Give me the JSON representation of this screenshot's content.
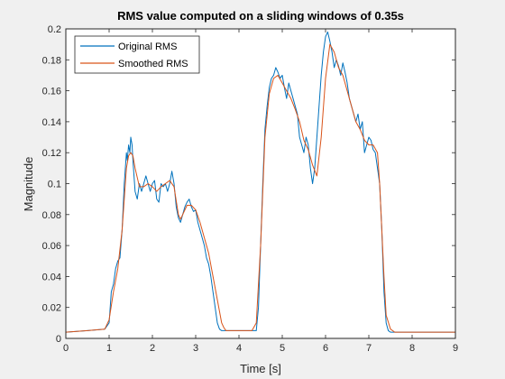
{
  "chart_data": {
    "type": "line",
    "title": "RMS value computed on a sliding windows of 0.35s",
    "xlabel": "Time [s]",
    "ylabel": "Magnitude",
    "xlim": [
      0,
      9
    ],
    "ylim": [
      0,
      0.2
    ],
    "xticks": [
      "0",
      "1",
      "2",
      "3",
      "4",
      "5",
      "6",
      "7",
      "8",
      "9"
    ],
    "yticks": [
      "0",
      "0.02",
      "0.04",
      "0.06",
      "0.08",
      "0.1",
      "0.12",
      "0.14",
      "0.16",
      "0.18",
      "0.2"
    ],
    "grid": false,
    "legend_position": "top-left",
    "series": [
      {
        "name": "Original RMS",
        "color": "#0072BD",
        "x": [
          0,
          0.5,
          0.9,
          1.0,
          1.05,
          1.1,
          1.15,
          1.2,
          1.25,
          1.3,
          1.35,
          1.4,
          1.42,
          1.45,
          1.48,
          1.5,
          1.53,
          1.55,
          1.6,
          1.65,
          1.7,
          1.75,
          1.8,
          1.85,
          1.9,
          1.95,
          2.0,
          2.05,
          2.1,
          2.15,
          2.2,
          2.25,
          2.3,
          2.35,
          2.4,
          2.45,
          2.5,
          2.55,
          2.6,
          2.65,
          2.7,
          2.75,
          2.8,
          2.85,
          2.9,
          2.95,
          3.0,
          3.05,
          3.1,
          3.15,
          3.2,
          3.25,
          3.3,
          3.35,
          3.4,
          3.45,
          3.5,
          3.55,
          3.6,
          3.7,
          4.0,
          4.3,
          4.4,
          4.45,
          4.5,
          4.55,
          4.6,
          4.65,
          4.7,
          4.75,
          4.8,
          4.85,
          4.9,
          4.95,
          5.0,
          5.05,
          5.1,
          5.15,
          5.2,
          5.25,
          5.3,
          5.35,
          5.4,
          5.45,
          5.5,
          5.55,
          5.6,
          5.65,
          5.7,
          5.75,
          5.8,
          5.85,
          5.9,
          5.95,
          6.0,
          6.05,
          6.1,
          6.15,
          6.2,
          6.25,
          6.3,
          6.35,
          6.4,
          6.45,
          6.5,
          6.55,
          6.6,
          6.65,
          6.7,
          6.75,
          6.8,
          6.85,
          6.9,
          6.95,
          7.0,
          7.05,
          7.1,
          7.15,
          7.2,
          7.25,
          7.3,
          7.35,
          7.4,
          7.45,
          7.5,
          7.6,
          8.0,
          9.0
        ],
        "y": [
          0.004,
          0.005,
          0.006,
          0.01,
          0.03,
          0.035,
          0.045,
          0.05,
          0.052,
          0.07,
          0.1,
          0.12,
          0.115,
          0.125,
          0.12,
          0.13,
          0.125,
          0.115,
          0.095,
          0.09,
          0.1,
          0.095,
          0.1,
          0.105,
          0.1,
          0.095,
          0.1,
          0.102,
          0.09,
          0.088,
          0.1,
          0.098,
          0.1,
          0.095,
          0.1,
          0.108,
          0.1,
          0.085,
          0.078,
          0.075,
          0.08,
          0.085,
          0.088,
          0.09,
          0.085,
          0.082,
          0.083,
          0.075,
          0.07,
          0.065,
          0.06,
          0.052,
          0.048,
          0.04,
          0.03,
          0.02,
          0.01,
          0.006,
          0.005,
          0.005,
          0.005,
          0.005,
          0.005,
          0.02,
          0.06,
          0.1,
          0.135,
          0.15,
          0.162,
          0.168,
          0.17,
          0.175,
          0.172,
          0.168,
          0.17,
          0.162,
          0.155,
          0.165,
          0.16,
          0.155,
          0.15,
          0.145,
          0.13,
          0.125,
          0.12,
          0.13,
          0.125,
          0.11,
          0.1,
          0.11,
          0.13,
          0.15,
          0.17,
          0.185,
          0.195,
          0.198,
          0.192,
          0.185,
          0.175,
          0.18,
          0.176,
          0.17,
          0.178,
          0.172,
          0.165,
          0.155,
          0.15,
          0.145,
          0.14,
          0.145,
          0.135,
          0.14,
          0.12,
          0.125,
          0.13,
          0.128,
          0.122,
          0.12,
          0.11,
          0.1,
          0.07,
          0.03,
          0.01,
          0.005,
          0.004,
          0.004,
          0.004,
          0.004
        ]
      },
      {
        "name": "Smoothed RMS",
        "color": "#D95319",
        "x": [
          0,
          0.5,
          0.9,
          1.0,
          1.1,
          1.2,
          1.3,
          1.35,
          1.4,
          1.45,
          1.5,
          1.55,
          1.6,
          1.7,
          1.8,
          1.9,
          2.0,
          2.1,
          2.2,
          2.3,
          2.4,
          2.5,
          2.6,
          2.65,
          2.7,
          2.8,
          2.9,
          3.0,
          3.1,
          3.2,
          3.3,
          3.4,
          3.5,
          3.6,
          3.65,
          3.7,
          4.0,
          4.3,
          4.4,
          4.5,
          4.6,
          4.7,
          4.8,
          4.9,
          5.0,
          5.1,
          5.2,
          5.3,
          5.4,
          5.5,
          5.6,
          5.7,
          5.8,
          5.9,
          6.0,
          6.1,
          6.2,
          6.3,
          6.4,
          6.5,
          6.6,
          6.7,
          6.8,
          6.9,
          7.0,
          7.1,
          7.2,
          7.25,
          7.3,
          7.35,
          7.4,
          7.5,
          7.6,
          8.0,
          9.0
        ],
        "y": [
          0.004,
          0.005,
          0.006,
          0.012,
          0.03,
          0.045,
          0.07,
          0.09,
          0.11,
          0.118,
          0.12,
          0.118,
          0.11,
          0.098,
          0.098,
          0.1,
          0.098,
          0.095,
          0.098,
          0.1,
          0.102,
          0.098,
          0.08,
          0.077,
          0.08,
          0.086,
          0.086,
          0.083,
          0.075,
          0.065,
          0.055,
          0.04,
          0.025,
          0.01,
          0.007,
          0.005,
          0.005,
          0.005,
          0.01,
          0.06,
          0.13,
          0.158,
          0.168,
          0.17,
          0.165,
          0.16,
          0.155,
          0.148,
          0.14,
          0.128,
          0.122,
          0.112,
          0.105,
          0.13,
          0.168,
          0.19,
          0.185,
          0.175,
          0.17,
          0.16,
          0.15,
          0.14,
          0.135,
          0.128,
          0.125,
          0.125,
          0.12,
          0.1,
          0.07,
          0.04,
          0.015,
          0.006,
          0.004,
          0.004,
          0.004
        ]
      }
    ]
  }
}
